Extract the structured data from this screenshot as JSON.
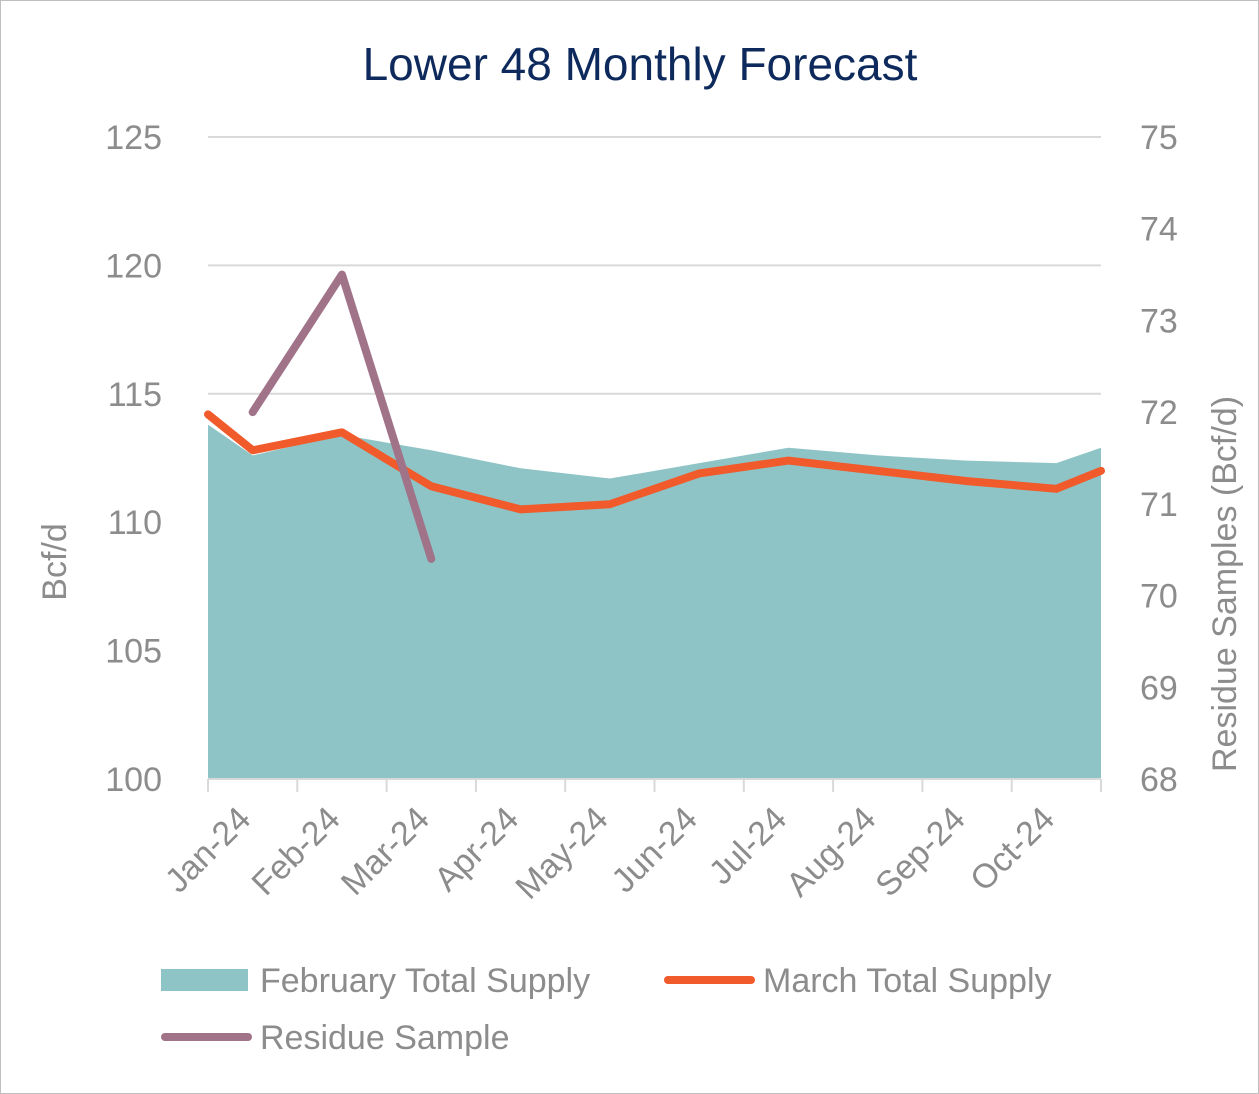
{
  "chart_data": {
    "type": "area",
    "title": "Lower 48 Monthly Forecast",
    "ylabel": "Bcf/d",
    "y2label": "Residue Samples (Bcf/d)",
    "ylim": [
      100,
      125
    ],
    "yticks": [
      100,
      105,
      110,
      115,
      120,
      125
    ],
    "y2lim": [
      68,
      75
    ],
    "y2ticks": [
      68,
      69,
      70,
      71,
      72,
      73,
      74,
      75
    ],
    "categories": [
      "Jan-24",
      "Feb-24",
      "Mar-24",
      "Apr-24",
      "May-24",
      "Jun-24",
      "Jul-24",
      "Aug-24",
      "Sep-24",
      "Oct-24"
    ],
    "grid": true,
    "legend_position": "bottom",
    "series": [
      {
        "name": "February Total Supply",
        "type": "area",
        "axis": "left",
        "color": "#8fc4c6",
        "x": [
          0,
          0.5,
          1.5,
          2.5,
          3.5,
          4.5,
          5.5,
          6.5,
          7.5,
          8.5,
          9.5,
          10
        ],
        "values": [
          113.8,
          112.6,
          113.4,
          112.8,
          112.1,
          111.7,
          112.3,
          112.9,
          112.6,
          112.4,
          112.3,
          112.9
        ]
      },
      {
        "name": "March Total Supply",
        "type": "line",
        "axis": "left",
        "color": "#f15a2b",
        "x": [
          0,
          0.5,
          1.5,
          2.5,
          3.5,
          4.5,
          5.5,
          6.5,
          7.5,
          8.5,
          9.5,
          10
        ],
        "values": [
          114.2,
          112.8,
          113.5,
          111.4,
          110.5,
          110.7,
          111.9,
          112.4,
          112.0,
          111.6,
          111.3,
          112.0
        ]
      },
      {
        "name": "Residue Sample",
        "type": "line",
        "axis": "right",
        "color": "#a07389",
        "x": [
          0.5,
          1.5,
          2.5
        ],
        "values": [
          72.0,
          73.5,
          70.4
        ]
      }
    ]
  }
}
